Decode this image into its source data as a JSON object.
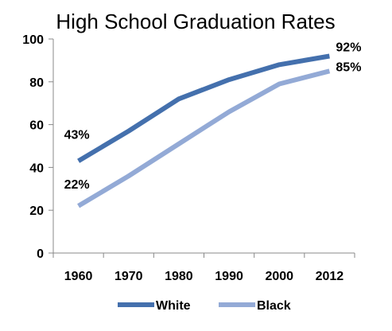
{
  "chart_data": {
    "type": "line",
    "title": "High School Graduation Rates",
    "xlabel": "",
    "ylabel": "",
    "categories": [
      "1960",
      "1970",
      "1980",
      "1990",
      "2000",
      "2012"
    ],
    "ylim": [
      0,
      100
    ],
    "yticks": [
      0,
      20,
      40,
      60,
      80,
      100
    ],
    "grid": false,
    "legend": "bottom",
    "series": [
      {
        "name": "White",
        "color": "#4470AD",
        "values": [
          43,
          57,
          72,
          81,
          88,
          92
        ],
        "labels": [
          {
            "index": 0,
            "text": "43%"
          },
          {
            "index": 5,
            "text": "92%"
          }
        ]
      },
      {
        "name": "Black",
        "color": "#93AAD6",
        "values": [
          22,
          36,
          51,
          66,
          79,
          85
        ],
        "labels": [
          {
            "index": 0,
            "text": "22%"
          },
          {
            "index": 5,
            "text": "85%"
          }
        ]
      }
    ]
  }
}
